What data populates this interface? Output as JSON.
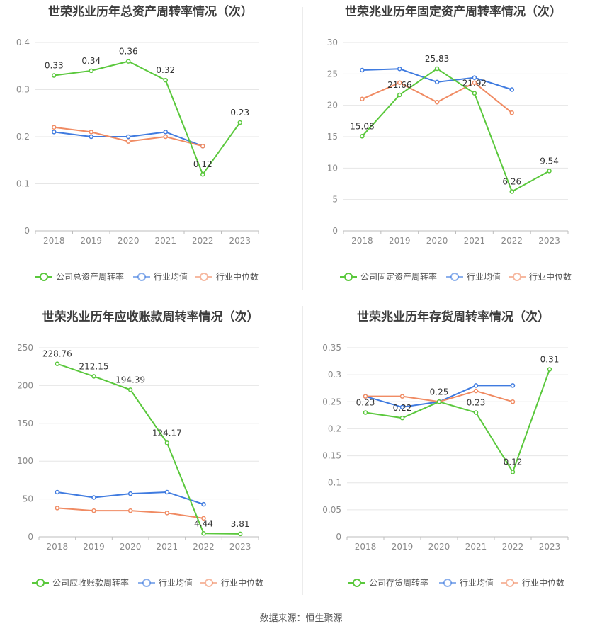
{
  "source": "数据来源：恒生聚源",
  "colors": {
    "company": "#5ac83c",
    "average": "#3f7be0",
    "median": "#f08b63",
    "grid": "#e6e6e6",
    "axis": "#8a8a8a"
  },
  "legend_labels": {
    "average": "行业均值",
    "median": "行业中位数"
  },
  "chart_data": [
    {
      "type": "line",
      "title": "世荣兆业历年总资产周转率情况（次）",
      "x": [
        "2018",
        "2019",
        "2020",
        "2021",
        "2022",
        "2023"
      ],
      "ylim": [
        0,
        0.4
      ],
      "yticks": [
        "0",
        "0.1",
        "0.2",
        "0.3",
        "0.4"
      ],
      "grid": true,
      "legend_position": "bottom",
      "series": [
        {
          "name": "公司总资产周转率",
          "role": "company",
          "values": [
            0.33,
            0.34,
            0.36,
            0.32,
            0.12,
            0.23
          ],
          "labels": [
            "0.33",
            "0.34",
            "0.36",
            "0.32",
            "0.12",
            "0.23"
          ]
        },
        {
          "name": "行业均值",
          "role": "average",
          "values": [
            0.21,
            0.2,
            0.2,
            0.21,
            0.18,
            null
          ]
        },
        {
          "name": "行业中位数",
          "role": "median",
          "values": [
            0.22,
            0.21,
            0.19,
            0.2,
            0.18,
            null
          ]
        }
      ]
    },
    {
      "type": "line",
      "title": "世荣兆业历年固定资产周转率情况（次）",
      "x": [
        "2018",
        "2019",
        "2020",
        "2021",
        "2022",
        "2023"
      ],
      "ylim": [
        0,
        30
      ],
      "yticks": [
        "0",
        "5",
        "10",
        "15",
        "20",
        "25",
        "30"
      ],
      "grid": true,
      "legend_position": "bottom",
      "series": [
        {
          "name": "公司固定资产周转率",
          "role": "company",
          "values": [
            15.08,
            21.66,
            25.83,
            21.92,
            6.26,
            9.54
          ],
          "labels": [
            "15.08",
            "21.66",
            "25.83",
            "21.92",
            "6.26",
            "9.54"
          ]
        },
        {
          "name": "行业均值",
          "role": "average",
          "values": [
            25.6,
            25.8,
            23.7,
            24.4,
            22.5,
            null
          ]
        },
        {
          "name": "行业中位数",
          "role": "median",
          "values": [
            21.0,
            23.6,
            20.5,
            23.6,
            18.8,
            null
          ]
        }
      ]
    },
    {
      "type": "line",
      "title": "世荣兆业历年应收账款周转率情况（次）",
      "x": [
        "2018",
        "2019",
        "2020",
        "2021",
        "2022",
        "2023"
      ],
      "ylim": [
        0,
        250
      ],
      "yticks": [
        "0",
        "50",
        "100",
        "150",
        "200",
        "250"
      ],
      "grid": true,
      "legend_position": "bottom",
      "series": [
        {
          "name": "公司应收账款周转率",
          "role": "company",
          "values": [
            228.76,
            212.15,
            194.39,
            124.17,
            4.44,
            3.81
          ],
          "labels": [
            "228.76",
            "212.15",
            "194.39",
            "124.17",
            "4.44",
            "3.81"
          ]
        },
        {
          "name": "行业均值",
          "role": "average",
          "values": [
            59,
            52,
            57,
            59,
            43,
            null
          ]
        },
        {
          "name": "行业中位数",
          "role": "median",
          "values": [
            38,
            34.5,
            34.5,
            31.5,
            24.5,
            null
          ]
        }
      ]
    },
    {
      "type": "line",
      "title": "世荣兆业历年存货周转率情况（次）",
      "x": [
        "2018",
        "2019",
        "2020",
        "2021",
        "2022",
        "2023"
      ],
      "ylim": [
        0,
        0.35
      ],
      "yticks": [
        "0",
        "0.05",
        "0.1",
        "0.15",
        "0.2",
        "0.25",
        "0.3",
        "0.35"
      ],
      "grid": true,
      "legend_position": "bottom",
      "series": [
        {
          "name": "公司存货周转率",
          "role": "company",
          "values": [
            0.23,
            0.22,
            0.25,
            0.23,
            0.12,
            0.31
          ],
          "labels": [
            "0.23",
            "0.22",
            "0.25",
            "0.23",
            "0.12",
            "0.31"
          ]
        },
        {
          "name": "行业均值",
          "role": "average",
          "values": [
            0.26,
            0.24,
            0.25,
            0.28,
            0.28,
            null
          ]
        },
        {
          "name": "行业中位数",
          "role": "median",
          "values": [
            0.26,
            0.26,
            0.25,
            0.27,
            0.25,
            null
          ]
        }
      ]
    }
  ]
}
